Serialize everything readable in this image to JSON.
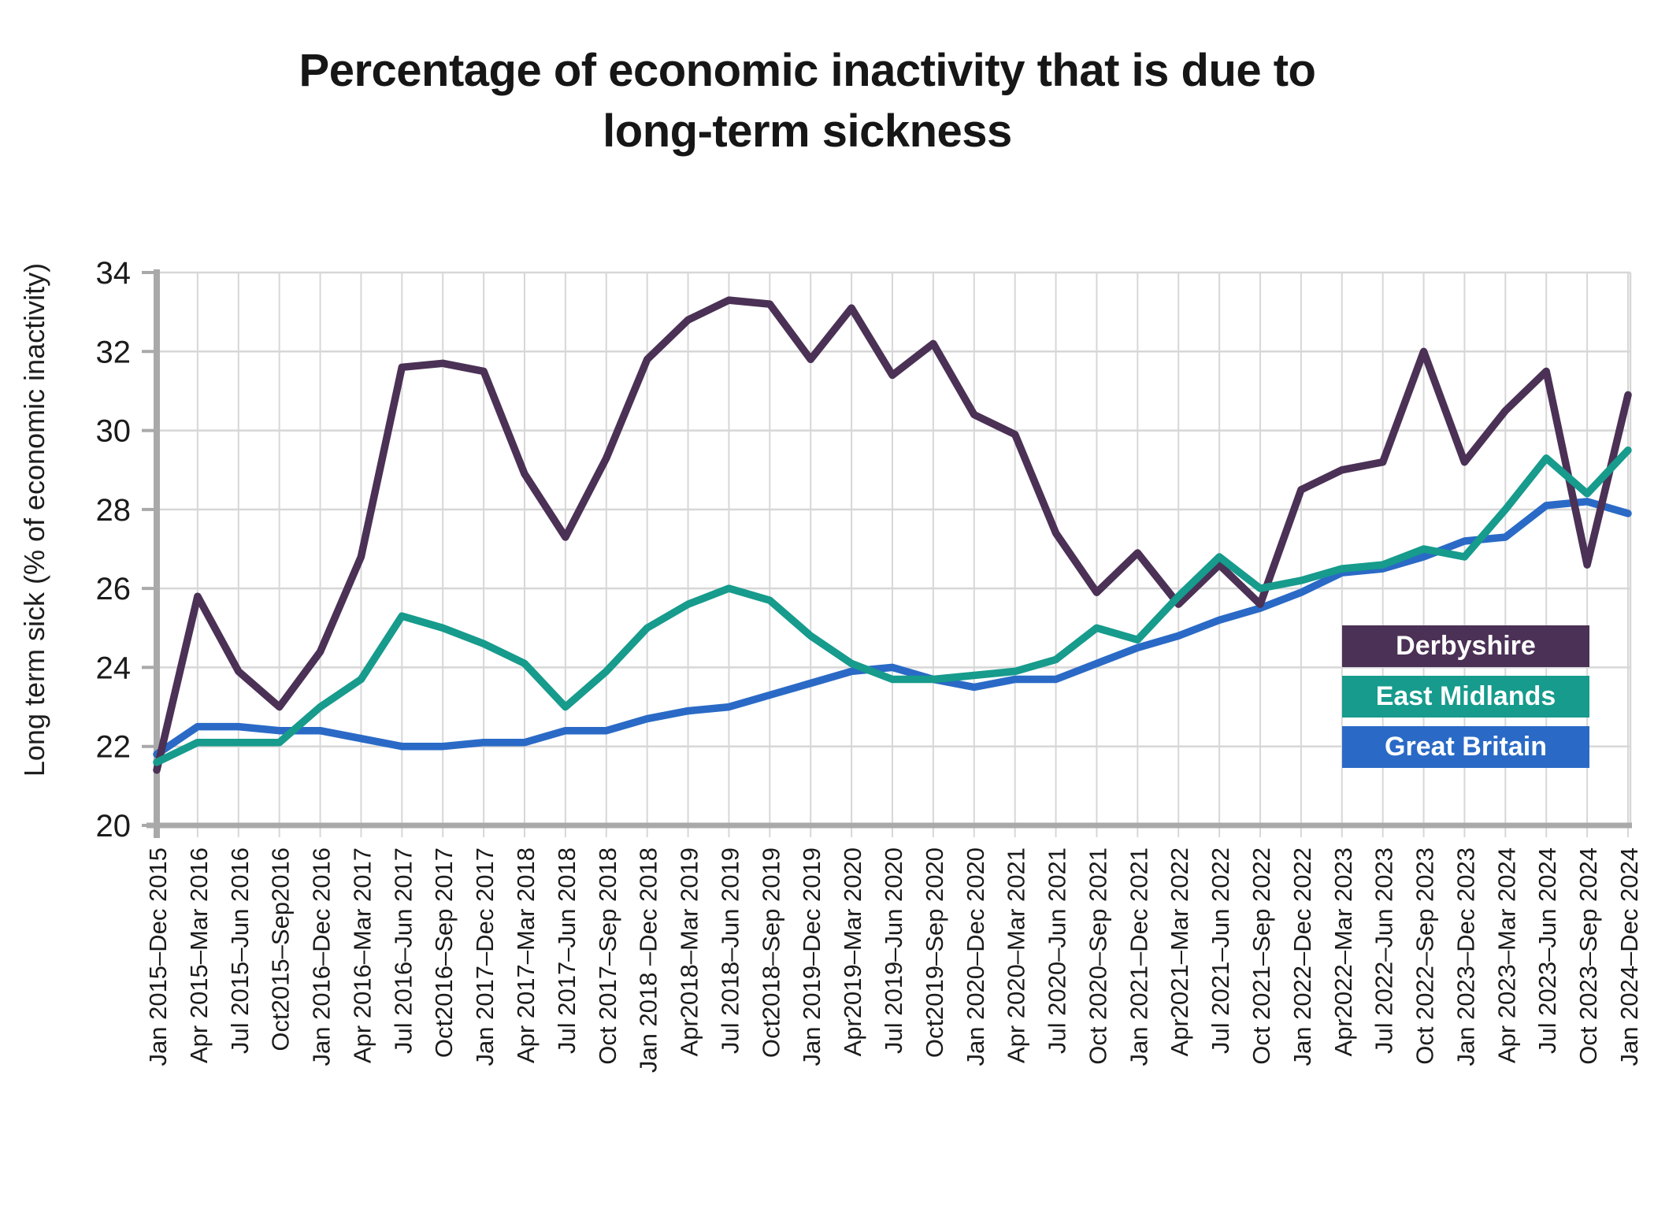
{
  "title_lines": [
    "Percentage of economic inactivity that is due to",
    "long-term sickness"
  ],
  "y_axis_label": "Long term sick (% of economic inactivity)",
  "legend_items": [
    "Derbyshire",
    "East Midlands",
    "Great Britain"
  ],
  "colors": {
    "derbyshire": "#4B3155",
    "east_midlands": "#169B8C",
    "great_britain": "#2A6AC6",
    "gridline": "#D7D7D7",
    "axis": "#A9A9A9",
    "tick_text": "#1B1B1B"
  },
  "chart_data": {
    "type": "line",
    "title": "Percentage of economic inactivity that is due to long-term sickness",
    "xlabel": "",
    "ylabel": "Long term sick (% of economic inactivity)",
    "ylim": [
      20,
      34
    ],
    "ytick_step": 2,
    "yticks": [
      20,
      22,
      24,
      26,
      28,
      30,
      32,
      34
    ],
    "grid": true,
    "legend_position": "inside-right",
    "categories": [
      "Jan 2015–Dec 2015",
      "Apr 2015–Mar 2016",
      "Jul 2015–Jun 2016",
      "Oct2015–Sep2016",
      "Jan 2016–Dec 2016",
      "Apr 2016–Mar 2017",
      "Jul 2016–Jun 2017",
      "Oct2016–Sep 2017",
      "Jan 2017–Dec 2017",
      "Apr 2017–Mar 2018",
      "Jul 2017–Jun 2018",
      "Oct 2017–Sep 2018",
      "Jan 2018 –Dec 2018",
      "Apr2018–Mar 2019",
      "Jul 2018–Jun 2019",
      "Oct2018–Sep 2019",
      "Jan 2019–Dec 2019",
      "Apr2019–Mar 2020",
      "Jul 2019–Jun 2020",
      "Oct2019–Sep 2020",
      "Jan 2020–Dec 2020",
      "Apr 2020–Mar 2021",
      "Jul 2020–Jun 2021",
      "Oct 2020–Sep 2021",
      "Jan 2021–Dec 2021",
      "Apr2021–Mar 2022",
      "Jul 2021–Jun 2022",
      "Oct 2021–Sep 2022",
      "Jan 2022–Dec 2022",
      "Apr2022–Mar 2023",
      "Jul 2022–Jun 2023",
      "Oct 2022–Sep 2023",
      "Jan 2023–Dec 2023",
      "Apr 2023–Mar 2024",
      "Jul 2023–Jun 2024",
      "Oct 2023–Sep 2024",
      "Jan 2024–Dec 2024"
    ],
    "series": [
      {
        "name": "Derbyshire",
        "color": "#4B3155",
        "values": [
          21.4,
          25.8,
          23.9,
          23.0,
          24.4,
          26.8,
          31.6,
          31.7,
          31.5,
          28.9,
          27.3,
          29.3,
          31.8,
          32.8,
          33.3,
          33.2,
          31.8,
          33.1,
          31.4,
          32.2,
          30.4,
          29.9,
          27.4,
          25.9,
          26.9,
          25.6,
          26.6,
          25.6,
          28.5,
          29.0,
          29.2,
          32.0,
          29.2,
          30.5,
          31.5,
          26.6,
          30.9
        ]
      },
      {
        "name": "East Midlands",
        "color": "#169B8C",
        "values": [
          21.6,
          22.1,
          22.1,
          22.1,
          23.0,
          23.7,
          25.3,
          25.0,
          24.6,
          24.1,
          23.0,
          23.9,
          25.0,
          25.6,
          26.0,
          25.7,
          24.8,
          24.1,
          23.7,
          23.7,
          23.8,
          23.9,
          24.2,
          25.0,
          24.7,
          25.8,
          26.8,
          26.0,
          26.2,
          26.5,
          26.6,
          27.0,
          26.8,
          28.0,
          29.3,
          28.4,
          29.5
        ]
      },
      {
        "name": "Great Britain",
        "color": "#2A6AC6",
        "values": [
          21.8,
          22.5,
          22.5,
          22.4,
          22.4,
          22.2,
          22.0,
          22.0,
          22.1,
          22.1,
          22.4,
          22.4,
          22.7,
          22.9,
          23.0,
          23.3,
          23.6,
          23.9,
          24.0,
          23.7,
          23.5,
          23.7,
          23.7,
          24.1,
          24.5,
          24.8,
          25.2,
          25.5,
          25.9,
          26.4,
          26.5,
          26.8,
          27.2,
          27.3,
          28.1,
          28.2,
          27.9
        ]
      }
    ]
  }
}
